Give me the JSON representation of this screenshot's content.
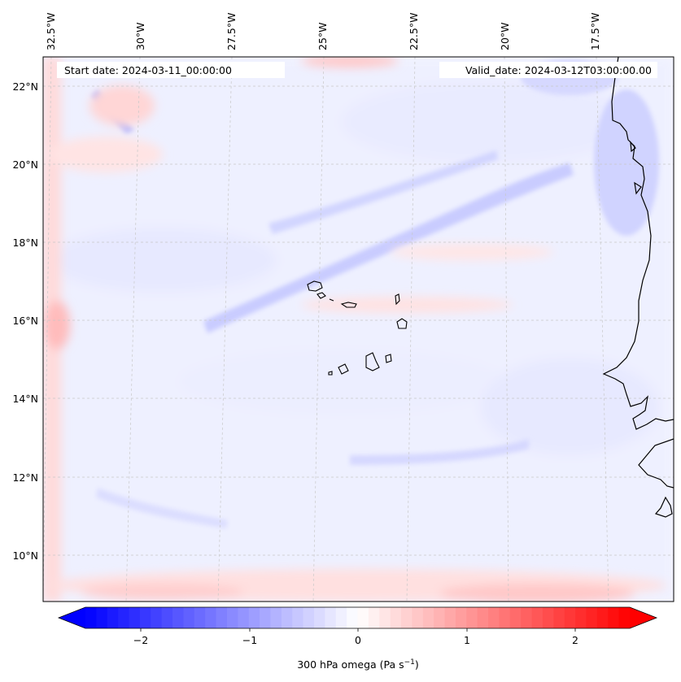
{
  "map": {
    "start_label": "Start date: 2024-03-11_00:00:00",
    "valid_label": "Valid_date: 2024-03-12T03:00:00.00",
    "lon_labels": [
      "32.5°W",
      "30°W",
      "27.5°W",
      "25°W",
      "22.5°W",
      "20°W",
      "17.5°W"
    ],
    "lat_labels": [
      "22°N",
      "20°N",
      "18°N",
      "16°N",
      "14°N",
      "12°N",
      "10°N"
    ],
    "coast_color": "#000000",
    "grid_color": "#c8c8c8"
  },
  "colorbar": {
    "ticks": [
      "−2",
      "−1",
      "0",
      "1",
      "2"
    ],
    "label": "300 hPa omega (Pa s",
    "label_sup": "−1",
    "label_close": ")",
    "min_color": "#0000ff",
    "mid_color": "#ffffff",
    "max_color": "#ff0000"
  }
}
